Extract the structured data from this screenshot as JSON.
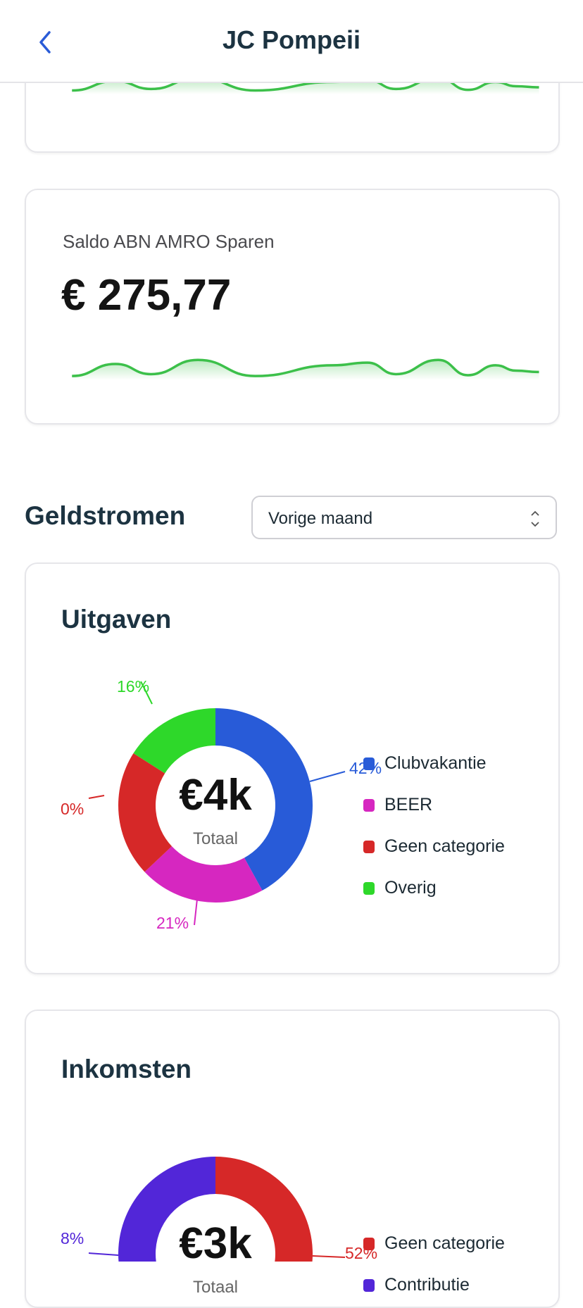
{
  "header": {
    "title": "JC Pompeii",
    "back_icon": "chevron-left-icon"
  },
  "accounts": [
    {
      "label": "",
      "value": ""
    },
    {
      "label": "Saldo ABN AMRO Sparen",
      "value": "€ 275,77"
    }
  ],
  "sparkline_color": "#3cc04a",
  "cashflow": {
    "heading": "Geldstromen",
    "period_select": {
      "value": "Vorige maand"
    }
  },
  "chart_data": [
    {
      "type": "pie",
      "title": "Uitgaven",
      "center_value": "€4k",
      "center_label": "Totaal",
      "categories": [
        "Clubvakantie",
        "BEER",
        "Geen categorie",
        "Overig"
      ],
      "values": [
        42,
        21,
        0,
        16
      ],
      "labels": [
        "42%",
        "21%",
        "0%",
        "16%"
      ],
      "colors": [
        "#285bd8",
        "#d627c0",
        "#d62828",
        "#2ed82a"
      ],
      "legend": "right"
    },
    {
      "type": "pie",
      "title": "Inkomsten",
      "center_value": "€3k",
      "center_label": "Totaal",
      "categories": [
        "Geen categorie",
        "Contributie"
      ],
      "values": [
        52,
        8
      ],
      "labels": [
        "52%",
        "8%"
      ],
      "colors": [
        "#d62828",
        "#5226d8"
      ],
      "legend": "right"
    }
  ]
}
